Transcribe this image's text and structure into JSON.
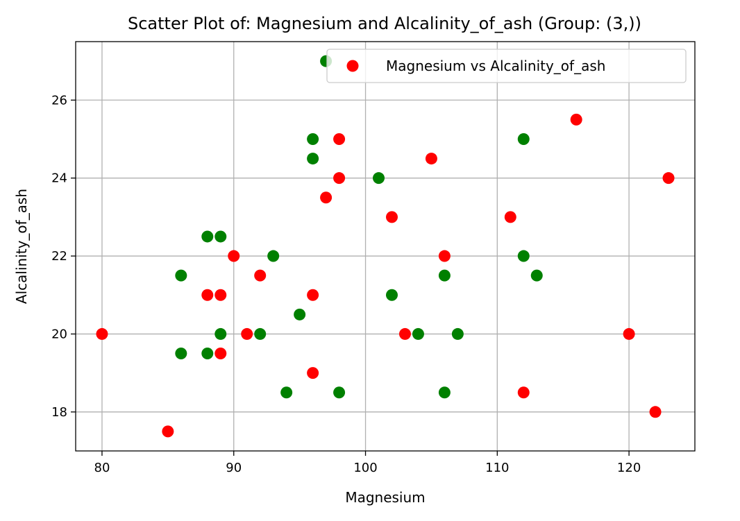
{
  "chart_data": {
    "type": "scatter",
    "title": "Scatter Plot of: Magnesium and Alcalinity_of_ash (Group: (3,))",
    "xlabel": "Magnesium",
    "ylabel": "Alcalinity_of_ash",
    "xlim": [
      78,
      125
    ],
    "ylim": [
      17,
      27.5
    ],
    "xticks": [
      80,
      90,
      100,
      110,
      120
    ],
    "yticks": [
      18,
      20,
      22,
      24,
      26
    ],
    "grid": true,
    "legend": {
      "placement": "upper-right",
      "entries": [
        {
          "label": "Magnesium vs Alcalinity_of_ash",
          "color": "#ff0000"
        }
      ]
    },
    "series": [
      {
        "name": "Magnesium vs Alcalinity_of_ash",
        "color": "#ff0000",
        "points": [
          [
            80,
            20
          ],
          [
            85,
            17.5
          ],
          [
            88,
            21
          ],
          [
            89,
            21
          ],
          [
            89,
            19.5
          ],
          [
            90,
            22
          ],
          [
            91,
            20
          ],
          [
            92,
            21.5
          ],
          [
            96,
            21
          ],
          [
            96,
            19
          ],
          [
            97,
            23.5
          ],
          [
            98,
            25
          ],
          [
            98,
            24
          ],
          [
            102,
            23
          ],
          [
            103,
            20
          ],
          [
            105,
            24.5
          ],
          [
            106,
            22
          ],
          [
            111,
            23
          ],
          [
            112,
            18.5
          ],
          [
            116,
            25.5
          ],
          [
            120,
            20
          ],
          [
            122,
            18
          ],
          [
            123,
            24
          ]
        ]
      },
      {
        "color": "#008000",
        "points": [
          [
            86,
            21.5
          ],
          [
            86,
            19.5
          ],
          [
            88,
            22.5
          ],
          [
            88,
            19.5
          ],
          [
            89,
            22.5
          ],
          [
            89,
            20
          ],
          [
            92,
            20
          ],
          [
            93,
            22
          ],
          [
            94,
            18.5
          ],
          [
            95,
            20.5
          ],
          [
            96,
            25
          ],
          [
            96,
            24.5
          ],
          [
            97,
            27
          ],
          [
            98,
            18.5
          ],
          [
            101,
            24
          ],
          [
            102,
            21
          ],
          [
            104,
            20
          ],
          [
            106,
            21.5
          ],
          [
            106,
            18.5
          ],
          [
            107,
            20
          ],
          [
            112,
            25
          ],
          [
            112,
            22
          ],
          [
            113,
            21.5
          ]
        ]
      }
    ]
  }
}
